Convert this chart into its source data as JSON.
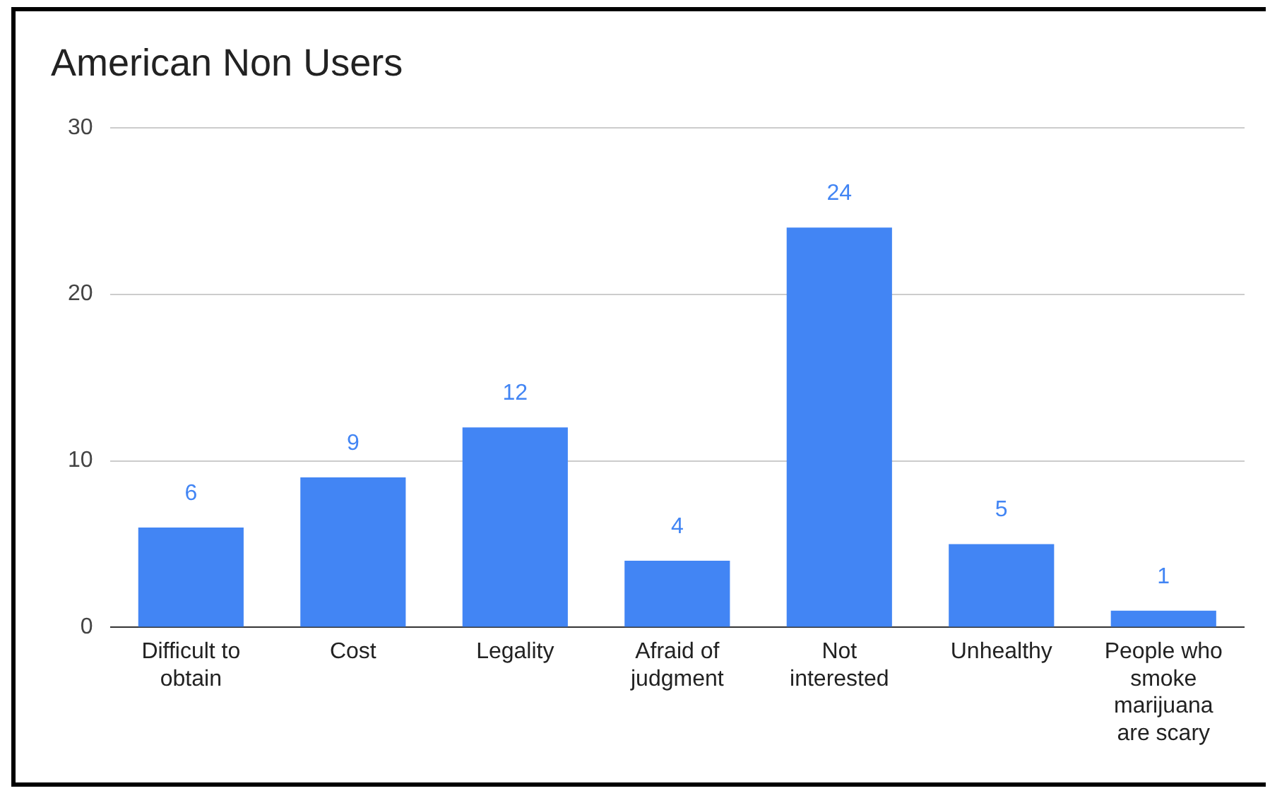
{
  "chart_data": {
    "type": "bar",
    "title": "American Non Users",
    "categories": [
      "Difficult to obtain",
      "Cost",
      "Legality",
      "Afraid of judgment",
      "Not interested",
      "Unhealthy",
      "People who smoke marijuana are scary"
    ],
    "values": [
      6,
      9,
      12,
      4,
      24,
      5,
      1
    ],
    "color": "#4285f4",
    "ylim": [
      0,
      30
    ],
    "yticks": [
      0,
      10,
      20,
      30
    ],
    "grid": "y",
    "data_labels": true
  }
}
